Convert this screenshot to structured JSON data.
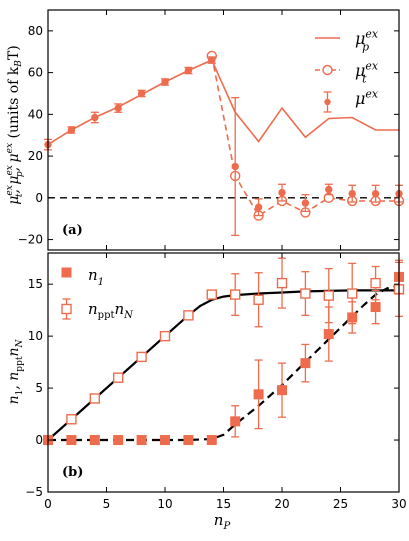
{
  "chart_data": [
    {
      "type": "line",
      "panel_label": "(a)",
      "xlim": [
        0,
        30
      ],
      "ylim": [
        -25,
        90
      ],
      "y_ticks": [
        -20,
        0,
        20,
        40,
        60,
        80
      ],
      "x_ticks": [
        0,
        5,
        10,
        15,
        20,
        25,
        30
      ],
      "ylabel": "μ_t^ex, μ_p^ex, μ^ex (units of k_BT)",
      "ylabel_parts": {
        "main": "μ",
        "sup": "ex",
        "t": "t",
        "p": "p",
        "units": " (units of k",
        "units_sub": "B",
        "units_end": "T)"
      },
      "legend_position": "top-right",
      "reference_line_y": 0,
      "series": [
        {
          "name": "μ_p^ex",
          "label_main": "μ",
          "label_sub": "p",
          "label_sup": "ex",
          "style": "solid-line",
          "x": [
            0,
            2,
            4,
            6,
            8,
            10,
            12,
            14,
            16,
            18,
            20,
            22,
            24,
            26,
            28,
            30
          ],
          "y": [
            25.5,
            32.5,
            38.5,
            43.5,
            49.5,
            55.5,
            61,
            66,
            41,
            27,
            43,
            29,
            38,
            38.5,
            32.5,
            32.5
          ]
        },
        {
          "name": "μ_t^ex",
          "label_main": "μ",
          "label_sub": "t",
          "label_sup": "ex",
          "style": "dashed-open-circle",
          "x": [
            14,
            16,
            18,
            20,
            22,
            24,
            26,
            28,
            30
          ],
          "y": [
            68,
            10.5,
            -8.5,
            -1.5,
            -7,
            0,
            -1.5,
            -1.5,
            -1.5
          ]
        },
        {
          "name": "μ^ex",
          "label_main": "μ",
          "label_sub": "",
          "label_sup": "ex",
          "style": "filled-circle-errorbar",
          "x": [
            0,
            2,
            4,
            6,
            8,
            10,
            12,
            14,
            16,
            18,
            20,
            22,
            24,
            26,
            28,
            30
          ],
          "y": [
            25.5,
            32.5,
            38.5,
            43,
            50,
            55.5,
            61,
            66,
            15,
            -4.5,
            2.5,
            -2.5,
            4,
            2,
            2,
            2
          ],
          "err": [
            2.5,
            1.5,
            2.5,
            2,
            1.5,
            1.5,
            1.5,
            1.5,
            33,
            4,
            4,
            4,
            2.5,
            4,
            4,
            4
          ]
        }
      ]
    },
    {
      "type": "scatter",
      "panel_label": "(b)",
      "xlim": [
        0,
        30
      ],
      "ylim": [
        -5,
        18
      ],
      "y_ticks": [
        -5,
        0,
        5,
        10,
        15
      ],
      "x_ticks": [
        0,
        5,
        10,
        15,
        20,
        25,
        30
      ],
      "xlabel": "n_P",
      "xlabel_parts": {
        "main": "n",
        "sub": "P"
      },
      "ylabel": "n_1, n_ppt n_N",
      "ylabel_parts": {
        "a": "n",
        "a_sub": "1",
        "b": ", n",
        "b_sub": "ppt",
        "c": "n",
        "c_sub": "N"
      },
      "legend_position": "top-left",
      "series": [
        {
          "name": "n_1",
          "label_main": "n",
          "label_sub": "1",
          "style": "filled-square-errorbar",
          "x": [
            0,
            2,
            4,
            6,
            8,
            10,
            12,
            14,
            16,
            18,
            20,
            22,
            24,
            26,
            28,
            30
          ],
          "y": [
            0,
            0,
            0,
            0,
            0,
            0,
            0,
            0,
            1.8,
            4.4,
            4.8,
            7.4,
            10.2,
            11.8,
            12.8,
            15.7
          ],
          "err": [
            0,
            0,
            0,
            0,
            0,
            0,
            0,
            0,
            1.5,
            3.3,
            2.6,
            1.8,
            2.6,
            1.5,
            1.6,
            1.6
          ]
        },
        {
          "name": "n_ppt n_N",
          "label_main": "n",
          "label_sub": "ppt",
          "label_main2": "n",
          "label_sub2": "N",
          "style": "open-square-errorbar",
          "x": [
            2,
            4,
            6,
            8,
            10,
            12,
            14,
            16,
            18,
            20,
            22,
            24,
            26,
            28,
            30
          ],
          "y": [
            2,
            4,
            6,
            8,
            10,
            12,
            14,
            14,
            13.5,
            15.1,
            14.1,
            13.9,
            14.1,
            15.1,
            14.5
          ],
          "err": [
            0,
            0,
            0,
            0,
            0,
            0,
            0.2,
            2,
            2.6,
            2.4,
            2.1,
            2.6,
            2.9,
            1.6,
            2.6
          ]
        }
      ],
      "fit_lines": [
        {
          "style": "solid",
          "x": [
            0,
            2,
            4,
            6,
            8,
            10,
            12,
            13,
            14,
            15,
            16,
            18,
            20,
            22,
            24,
            26,
            28,
            30
          ],
          "y": [
            0,
            2,
            4,
            6,
            8,
            10,
            12,
            12.9,
            13.5,
            13.8,
            13.95,
            14.1,
            14.2,
            14.3,
            14.35,
            14.4,
            14.4,
            14.4
          ]
        },
        {
          "style": "dashed",
          "x": [
            0,
            12,
            14,
            15,
            16,
            18,
            20,
            22,
            24,
            26,
            27,
            28,
            29,
            30
          ],
          "y": [
            0,
            0,
            0.1,
            0.5,
            1.5,
            3.3,
            5.3,
            7.5,
            9.7,
            11.9,
            13,
            14,
            14.6,
            14.9
          ]
        }
      ]
    }
  ],
  "colors": {
    "series": "#ee6c4d",
    "axis": "#000000",
    "fit": "#000000"
  }
}
